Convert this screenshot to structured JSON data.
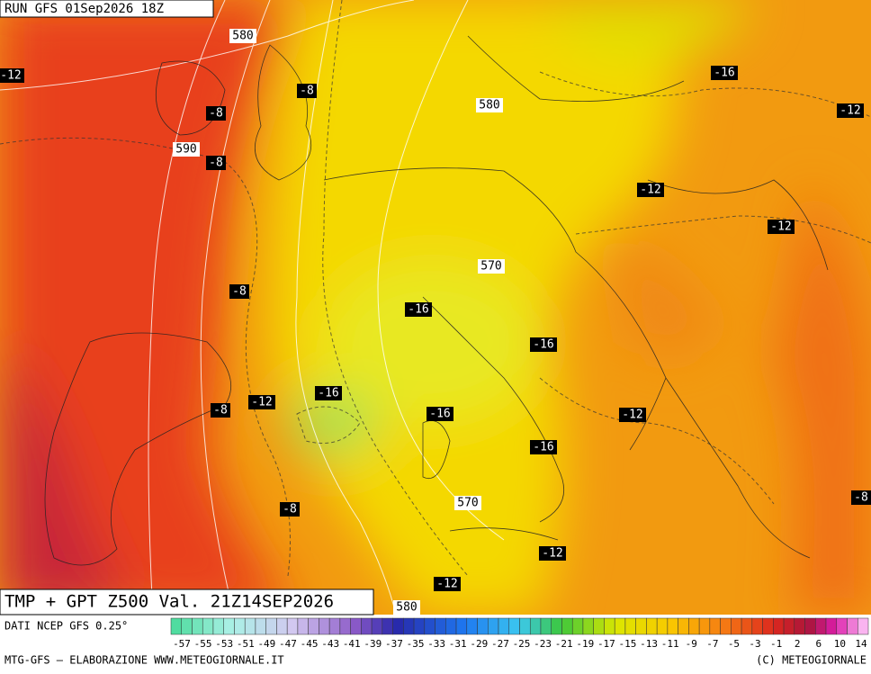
{
  "header": {
    "run": "RUN GFS 01Sep2026 18Z"
  },
  "map": {
    "title": "TMP + GPT Z500 Val. 21Z14SEP2026",
    "contour_labels": [
      "580",
      "-12",
      "-8",
      "-8",
      "580",
      "-16",
      "-12",
      "590",
      "-8",
      "-12",
      "-12",
      "570",
      "-8",
      "-16",
      "-16",
      "-16",
      "-12",
      "-8",
      "-16",
      "-12",
      "-16",
      "570",
      "-8",
      "-8",
      "-12",
      "-12",
      "580"
    ]
  },
  "legend": {
    "source": "DATI NCEP GFS 0.25°",
    "labels": [
      "-57",
      "-55",
      "-53",
      "-51",
      "-49",
      "-47",
      "-45",
      "-43",
      "-41",
      "-39",
      "-37",
      "-35",
      "-33",
      "-31",
      "-29",
      "-27",
      "-25",
      "-23",
      "-21",
      "-19",
      "-17",
      "-15",
      "-13",
      "-11",
      "-9",
      "-7",
      "-5",
      "-3",
      "-1",
      "2",
      "6",
      "10",
      "14"
    ]
  },
  "footer": {
    "left": "MTG-GFS — ELABORAZIONE WWW.METEOGIORNALE.IT",
    "right": "(C) METEOGIORNALE"
  }
}
